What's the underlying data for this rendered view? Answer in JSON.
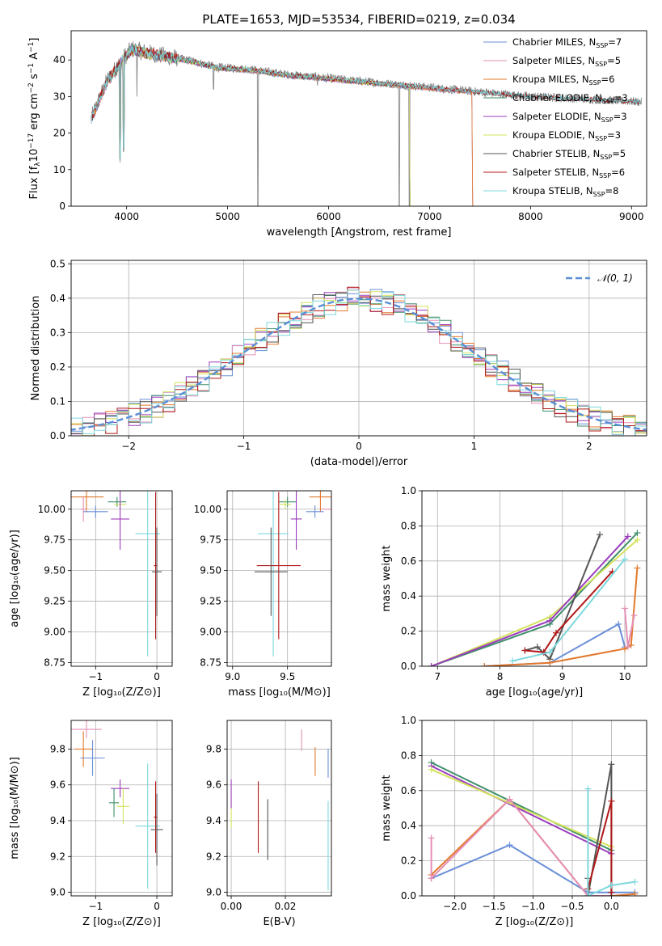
{
  "figure": {
    "title": "PLATE=1653, MJD=53534, FIBERID=0219, z=0.034",
    "colors": {
      "Chabrier MILES": "#6a8fd8",
      "Salpeter MILES": "#e58fb6",
      "Kroupa MILES": "#e3792e",
      "Chabrier ELODIE": "#3f8f6a",
      "Salpeter ELODIE": "#9b3cbd",
      "Kroupa ELODIE": "#d3e35a",
      "Chabrier STELIB": "#555555",
      "Salpeter STELIB": "#b01818",
      "Kroupa STELIB": "#7dd8dd"
    }
  },
  "chart_data": [
    {
      "panel": "spectrum",
      "type": "line",
      "xlabel": "wavelength [Angstrom, rest frame]",
      "ylabel_parts": [
        "Flux [f",
        "λ",
        "10",
        "−17",
        " erg cm",
        "−2",
        " s",
        "−1",
        " A",
        "−1",
        "]"
      ],
      "xlim": [
        3450,
        9150
      ],
      "ylim": [
        0,
        48
      ],
      "xticks": [
        4000,
        5000,
        6000,
        7000,
        8000,
        9000
      ],
      "yticks": [
        0,
        10,
        20,
        30,
        40
      ],
      "grid": false,
      "legend_position": "top-right",
      "legend": [
        {
          "model": "Chabrier MILES",
          "nssp": "7"
        },
        {
          "model": "Salpeter MILES",
          "nssp": "5"
        },
        {
          "model": "Kroupa MILES",
          "nssp": "6"
        },
        {
          "model": "Chabrier ELODIE",
          "nssp": "3"
        },
        {
          "model": "Salpeter ELODIE",
          "nssp": "3"
        },
        {
          "model": "Kroupa ELODIE",
          "nssp": "3"
        },
        {
          "model": "Chabrier STELIB",
          "nssp": "5"
        },
        {
          "model": "Salpeter STELIB",
          "nssp": "6"
        },
        {
          "model": "Kroupa STELIB",
          "nssp": "8"
        }
      ],
      "nssp_label": "N",
      "nssp_sub": "SSP",
      "continuum": [
        [
          3650,
          24
        ],
        [
          3800,
          34
        ],
        [
          3950,
          40
        ],
        [
          4050,
          43
        ],
        [
          4200,
          42
        ],
        [
          4400,
          41
        ],
        [
          4600,
          40
        ],
        [
          4900,
          38
        ],
        [
          5200,
          37.5
        ],
        [
          5600,
          36
        ],
        [
          6000,
          35
        ],
        [
          6400,
          34
        ],
        [
          6800,
          33
        ],
        [
          7200,
          32
        ],
        [
          7600,
          31
        ],
        [
          8000,
          30
        ],
        [
          8400,
          29.5
        ],
        [
          8800,
          29
        ],
        [
          9100,
          28.5
        ]
      ],
      "observed_dips": [
        [
          3934,
          12
        ],
        [
          3969,
          15
        ],
        [
          4102,
          30
        ],
        [
          4861,
          32
        ],
        [
          5300,
          0
        ],
        [
          5890,
          33
        ],
        [
          6563,
          33
        ],
        [
          6700,
          0
        ],
        [
          6800,
          0
        ]
      ],
      "truncations": [
        {
          "model": "Kroupa ELODIE",
          "from": 3900,
          "to": 6800
        },
        {
          "model": "Salpeter ELODIE",
          "from": 3900,
          "to": 6800
        },
        {
          "model": "Chabrier ELODIE",
          "from": 3900,
          "to": 6800
        },
        {
          "model": "Kroupa MILES",
          "from": 3650,
          "to": 7420
        },
        {
          "model": "Salpeter MILES",
          "from": 3650,
          "to": 7420
        },
        {
          "model": "Chabrier MILES",
          "from": 3650,
          "to": 7420
        }
      ]
    },
    {
      "panel": "residual-histogram",
      "type": "line",
      "xlabel": "(data-model)/error",
      "ylabel": "Normed distribution",
      "xlim": [
        -2.5,
        2.5
      ],
      "ylim": [
        0,
        0.51
      ],
      "xticks": [
        -2,
        -1,
        0,
        1,
        2
      ],
      "yticks": [
        0.0,
        0.1,
        0.2,
        0.3,
        0.4,
        0.5
      ],
      "grid": true,
      "legend_position": "top-right",
      "legend_label": "𝒩(0, 1)",
      "bin_width": 0.1,
      "gaussian": {
        "mean": 0,
        "sigma": 1
      }
    },
    {
      "panel": "age-vs-Z",
      "type": "scatter",
      "xlabel": "Z [log₁₀(Z/Z⊙)]",
      "ylabel": "age  [log₁₀(age/yr)]",
      "xlim": [
        -1.4,
        0.25
      ],
      "ylim": [
        8.72,
        10.15
      ],
      "xticks": [
        -1,
        0
      ],
      "yticks": [
        8.75,
        9.0,
        9.25,
        9.5,
        9.75,
        10.0
      ],
      "grid": true,
      "points": [
        {
          "model": "Kroupa MILES",
          "x": -1.15,
          "y": 10.1,
          "xerr": 0.28,
          "yerr": 0.12
        },
        {
          "model": "Salpeter MILES",
          "x": -1.2,
          "y": 10.0,
          "xerr": 0.05,
          "yerr": 0.1
        },
        {
          "model": "Chabrier MILES",
          "x": -1.0,
          "y": 9.98,
          "xerr": 0.2,
          "yerr": 0.05
        },
        {
          "model": "Chabrier ELODIE",
          "x": -0.65,
          "y": 10.06,
          "xerr": 0.15,
          "yerr": 0.04
        },
        {
          "model": "Kroupa ELODIE",
          "x": -0.6,
          "y": 10.04,
          "xerr": 0.1,
          "yerr": 0.04
        },
        {
          "model": "Salpeter ELODIE",
          "x": -0.6,
          "y": 9.92,
          "xerr": 0.15,
          "yerr": 0.25
        },
        {
          "model": "Kroupa STELIB",
          "x": -0.15,
          "y": 9.8,
          "xerr": 0.2,
          "yerr": 1.0
        },
        {
          "model": "Salpeter STELIB",
          "x": -0.02,
          "y": 9.54,
          "xerr": 0.03,
          "yerr": 0.6
        },
        {
          "model": "Chabrier STELIB",
          "x": 0.0,
          "y": 9.49,
          "xerr": 0.08,
          "yerr": 0.36
        }
      ]
    },
    {
      "panel": "age-vs-mass",
      "type": "scatter",
      "xlabel": "mass [log₁₀(M/M⊙)]",
      "ylabel": "",
      "xlim": [
        8.95,
        9.9
      ],
      "ylim": [
        8.72,
        10.15
      ],
      "xticks": [
        9.0,
        9.5
      ],
      "yticks": [
        8.75,
        9.0,
        9.25,
        9.5,
        9.75,
        10.0
      ],
      "grid": true,
      "points": [
        {
          "model": "Kroupa MILES",
          "x": 9.8,
          "y": 10.1,
          "xerr": 0.1,
          "yerr": 0.12
        },
        {
          "model": "Salpeter MILES",
          "x": 9.9,
          "y": 10.0,
          "xerr": 0.1,
          "yerr": 0.1
        },
        {
          "model": "Chabrier MILES",
          "x": 9.75,
          "y": 9.98,
          "xerr": 0.08,
          "yerr": 0.05
        },
        {
          "model": "Chabrier ELODIE",
          "x": 9.5,
          "y": 10.06,
          "xerr": 0.08,
          "yerr": 0.04
        },
        {
          "model": "Kroupa ELODIE",
          "x": 9.48,
          "y": 10.04,
          "xerr": 0.05,
          "yerr": 0.04
        },
        {
          "model": "Salpeter ELODIE",
          "x": 9.58,
          "y": 9.92,
          "xerr": 0.05,
          "yerr": 0.25
        },
        {
          "model": "Kroupa STELIB",
          "x": 9.37,
          "y": 9.8,
          "xerr": 0.14,
          "yerr": 1.0
        },
        {
          "model": "Salpeter STELIB",
          "x": 9.42,
          "y": 9.54,
          "xerr": 0.2,
          "yerr": 0.6
        },
        {
          "model": "Chabrier STELIB",
          "x": 9.35,
          "y": 9.49,
          "xerr": 0.15,
          "yerr": 0.36
        }
      ]
    },
    {
      "panel": "mass-weight-vs-age",
      "type": "line",
      "xlabel": "age  [log₁₀(age/yr)]",
      "ylabel": "mass weight",
      "xlim": [
        6.75,
        10.35
      ],
      "ylim": [
        0,
        1
      ],
      "xticks": [
        7,
        8,
        9,
        10
      ],
      "yticks": [
        0.0,
        0.2,
        0.4,
        0.6,
        0.8,
        1.0
      ],
      "grid": true,
      "series": [
        {
          "model": "Chabrier ELODIE",
          "points": [
            [
              6.9,
              0.0
            ],
            [
              8.8,
              0.24
            ],
            [
              10.2,
              0.76
            ]
          ]
        },
        {
          "model": "Kroupa ELODIE",
          "points": [
            [
              6.9,
              0.0
            ],
            [
              8.8,
              0.28
            ],
            [
              10.2,
              0.72
            ]
          ]
        },
        {
          "model": "Salpeter ELODIE",
          "points": [
            [
              6.9,
              0.0
            ],
            [
              8.8,
              0.26
            ],
            [
              10.05,
              0.74
            ]
          ]
        },
        {
          "model": "Chabrier STELIB",
          "points": [
            [
              8.4,
              0.09
            ],
            [
              8.6,
              0.11
            ],
            [
              8.8,
              0.04
            ],
            [
              9.6,
              0.75
            ]
          ]
        },
        {
          "model": "Salpeter STELIB",
          "points": [
            [
              8.4,
              0.09
            ],
            [
              8.7,
              0.08
            ],
            [
              8.9,
              0.19
            ],
            [
              9.8,
              0.54
            ]
          ]
        },
        {
          "model": "Kroupa STELIB",
          "points": [
            [
              8.2,
              0.03
            ],
            [
              8.8,
              0.08
            ],
            [
              10.0,
              0.61
            ]
          ]
        },
        {
          "model": "Chabrier MILES",
          "points": [
            [
              7.75,
              0.0
            ],
            [
              8.8,
              0.02
            ],
            [
              9.9,
              0.24
            ],
            [
              10.0,
              0.11
            ]
          ]
        },
        {
          "model": "Kroupa MILES",
          "points": [
            [
              7.75,
              0.0
            ],
            [
              8.8,
              0.02
            ],
            [
              10.0,
              0.1
            ],
            [
              10.1,
              0.12
            ],
            [
              10.2,
              0.56
            ]
          ]
        },
        {
          "model": "Salpeter MILES",
          "points": [
            [
              10.0,
              0.33
            ],
            [
              10.05,
              0.11
            ],
            [
              10.15,
              0.29
            ]
          ]
        }
      ]
    },
    {
      "panel": "mass-vs-Z",
      "type": "scatter",
      "xlabel": "Z [log₁₀(Z/Z⊙)]",
      "ylabel": "mass [log₁₀(M/M⊙)]",
      "xlim": [
        -1.4,
        0.25
      ],
      "ylim": [
        8.98,
        9.96
      ],
      "xticks": [
        -1,
        0
      ],
      "yticks": [
        9.0,
        9.2,
        9.4,
        9.6,
        9.8
      ],
      "grid": true,
      "points": [
        {
          "model": "Salpeter MILES",
          "x": -1.15,
          "y": 9.91,
          "xerr": 0.25,
          "yerr": 0.05
        },
        {
          "model": "Kroupa MILES",
          "x": -1.2,
          "y": 9.8,
          "xerr": 0.15,
          "yerr": 0.1
        },
        {
          "model": "Chabrier MILES",
          "x": -1.05,
          "y": 9.75,
          "xerr": 0.2,
          "yerr": 0.1
        },
        {
          "model": "Salpeter ELODIE",
          "x": -0.6,
          "y": 9.58,
          "xerr": 0.15,
          "yerr": 0.05
        },
        {
          "model": "Chabrier ELODIE",
          "x": -0.7,
          "y": 9.5,
          "xerr": 0.08,
          "yerr": 0.08
        },
        {
          "model": "Kroupa ELODIE",
          "x": -0.55,
          "y": 9.48,
          "xerr": 0.1,
          "yerr": 0.1
        },
        {
          "model": "Kroupa STELIB",
          "x": -0.15,
          "y": 9.37,
          "xerr": 0.2,
          "yerr": 0.35
        },
        {
          "model": "Salpeter STELIB",
          "x": -0.02,
          "y": 9.42,
          "xerr": 0.03,
          "yerr": 0.2
        },
        {
          "model": "Chabrier STELIB",
          "x": 0.0,
          "y": 9.35,
          "xerr": 0.1,
          "yerr": 0.2
        }
      ]
    },
    {
      "panel": "mass-vs-EBV",
      "type": "scatter",
      "xlabel": "E(B-V)",
      "ylabel": "",
      "xlim": [
        -0.0015,
        0.037
      ],
      "ylim": [
        8.98,
        9.96
      ],
      "xticks": [
        0.0,
        0.02
      ],
      "yticks": [
        9.0,
        9.2,
        9.4,
        9.6,
        9.8
      ],
      "grid": true,
      "points": [
        {
          "model": "Kroupa ELODIE",
          "x": 0.0,
          "y": 9.48,
          "yerr": 0.12
        },
        {
          "model": "Salpeter ELODIE",
          "x": 0.0,
          "y": 9.55,
          "yerr": 0.08
        },
        {
          "model": "Salpeter STELIB",
          "x": 0.01,
          "y": 9.42,
          "yerr": 0.2
        },
        {
          "model": "Chabrier STELIB",
          "x": 0.0135,
          "y": 9.35,
          "yerr": 0.17
        },
        {
          "model": "Salpeter MILES",
          "x": 0.026,
          "y": 9.85,
          "yerr": 0.06
        },
        {
          "model": "Kroupa MILES",
          "x": 0.031,
          "y": 9.73,
          "yerr": 0.08
        },
        {
          "model": "Chabrier MILES",
          "x": 0.0358,
          "y": 9.72,
          "yerr": 0.08
        },
        {
          "model": "Kroupa STELIB",
          "x": 0.0358,
          "y": 9.26,
          "yerr": 0.25
        }
      ]
    },
    {
      "panel": "mass-weight-vs-Z",
      "type": "line",
      "xlabel": "Z [log₁₀(Z/Z⊙)]",
      "ylabel": "mass weight",
      "xlim": [
        -2.42,
        0.45
      ],
      "ylim": [
        0,
        1
      ],
      "xticks": [
        -2.0,
        -1.5,
        -1.0,
        -0.5,
        0.0
      ],
      "yticks": [
        0.0,
        0.2,
        0.4,
        0.6,
        0.8,
        1.0
      ],
      "grid": true,
      "series": [
        {
          "model": "Chabrier ELODIE",
          "points": [
            [
              -2.3,
              0.76
            ],
            [
              0.0,
              0.26
            ]
          ]
        },
        {
          "model": "Salpeter ELODIE",
          "points": [
            [
              -2.3,
              0.74
            ],
            [
              0.0,
              0.24
            ]
          ]
        },
        {
          "model": "Kroupa ELODIE",
          "points": [
            [
              -2.3,
              0.72
            ],
            [
              0.0,
              0.28
            ]
          ]
        },
        {
          "model": "Chabrier MILES",
          "points": [
            [
              -2.3,
              0.1
            ],
            [
              -1.3,
              0.29
            ],
            [
              -0.3,
              0.02
            ],
            [
              0.0,
              0.02
            ],
            [
              0.3,
              0.02
            ]
          ]
        },
        {
          "model": "Kroupa MILES",
          "points": [
            [
              -2.3,
              0.12
            ],
            [
              -1.3,
              0.55
            ],
            [
              -0.3,
              0.0
            ],
            [
              0.0,
              0.0
            ],
            [
              0.3,
              0.01
            ]
          ]
        },
        {
          "model": "Salpeter MILES",
          "points": [
            [
              -2.3,
              0.33
            ],
            [
              -2.3,
              0.1
            ],
            [
              -1.3,
              0.55
            ],
            [
              -0.3,
              0.0
            ],
            [
              0.0,
              0.0
            ]
          ]
        },
        {
          "model": "Chabrier STELIB",
          "points": [
            [
              -0.3,
              0.1
            ],
            [
              -0.3,
              0.0
            ],
            [
              0.0,
              0.75
            ],
            [
              0.0,
              0.0
            ]
          ]
        },
        {
          "model": "Salpeter STELIB",
          "points": [
            [
              -0.3,
              0.04
            ],
            [
              0.0,
              0.54
            ],
            [
              0.0,
              0.02
            ]
          ]
        },
        {
          "model": "Kroupa STELIB",
          "points": [
            [
              -0.3,
              0.61
            ],
            [
              -0.3,
              0.0
            ],
            [
              0.0,
              0.06
            ],
            [
              0.3,
              0.08
            ]
          ]
        }
      ]
    }
  ]
}
